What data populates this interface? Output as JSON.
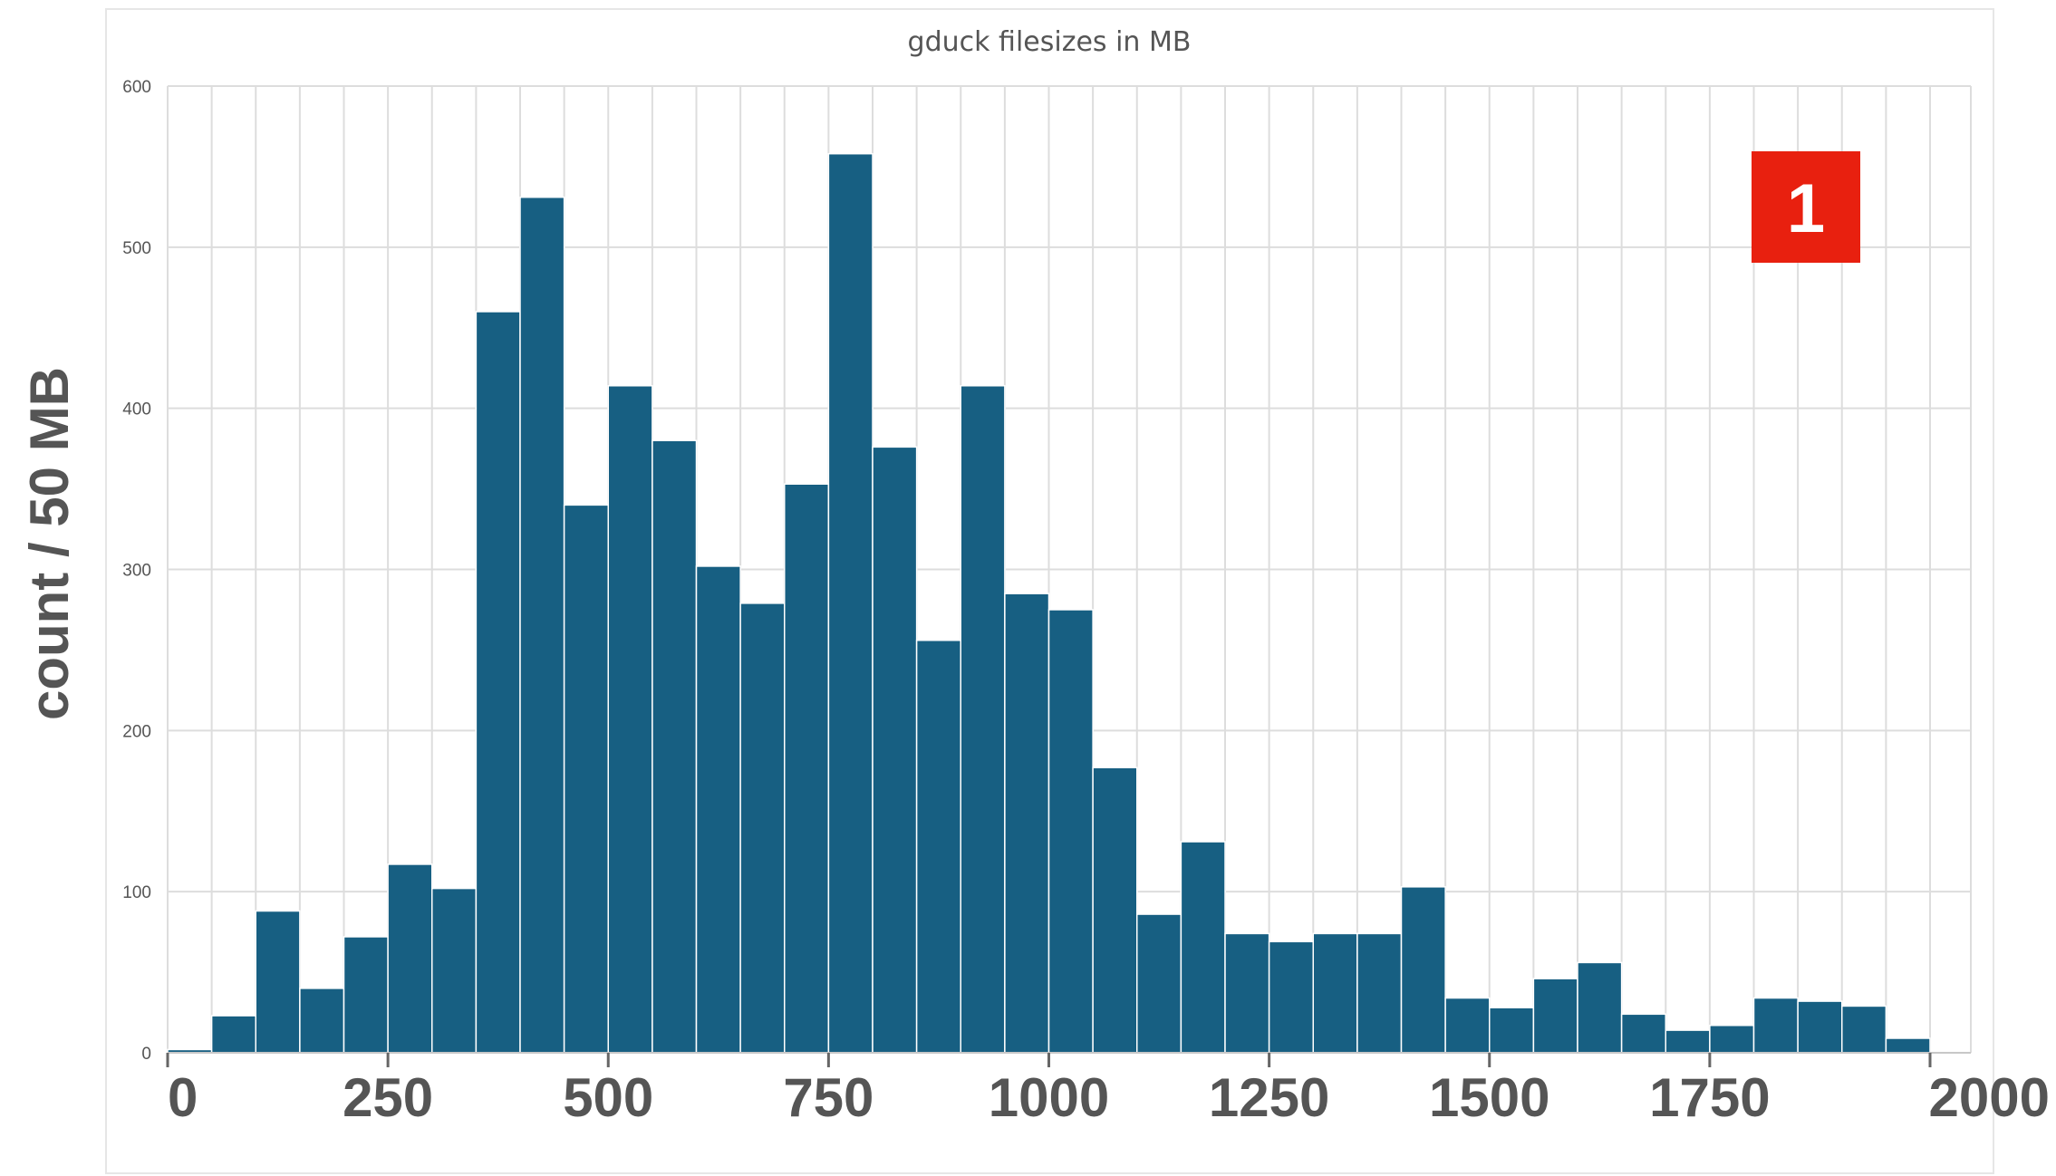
{
  "chart_data": {
    "type": "bar",
    "title": "gduck filesizes in MB",
    "xlabel": "",
    "ylabel": "count / 50 MB",
    "bin_width": 50,
    "xlim": [
      0,
      2000
    ],
    "ylim": [
      0,
      600
    ],
    "x_ticks": [
      0,
      250,
      500,
      750,
      1000,
      1250,
      1500,
      1750,
      2000
    ],
    "y_ticks": [
      0,
      100,
      200,
      300,
      400,
      500,
      600
    ],
    "grid": true,
    "bins": [
      {
        "x0": 0,
        "x1": 50,
        "count": 2
      },
      {
        "x0": 50,
        "x1": 100,
        "count": 23
      },
      {
        "x0": 100,
        "x1": 150,
        "count": 88
      },
      {
        "x0": 150,
        "x1": 200,
        "count": 40
      },
      {
        "x0": 200,
        "x1": 250,
        "count": 72
      },
      {
        "x0": 250,
        "x1": 300,
        "count": 117
      },
      {
        "x0": 300,
        "x1": 350,
        "count": 102
      },
      {
        "x0": 350,
        "x1": 400,
        "count": 460
      },
      {
        "x0": 400,
        "x1": 450,
        "count": 531
      },
      {
        "x0": 450,
        "x1": 500,
        "count": 340
      },
      {
        "x0": 500,
        "x1": 550,
        "count": 414
      },
      {
        "x0": 550,
        "x1": 600,
        "count": 380
      },
      {
        "x0": 600,
        "x1": 650,
        "count": 302
      },
      {
        "x0": 650,
        "x1": 700,
        "count": 279
      },
      {
        "x0": 700,
        "x1": 750,
        "count": 353
      },
      {
        "x0": 750,
        "x1": 800,
        "count": 558
      },
      {
        "x0": 800,
        "x1": 850,
        "count": 376
      },
      {
        "x0": 850,
        "x1": 900,
        "count": 256
      },
      {
        "x0": 900,
        "x1": 950,
        "count": 414
      },
      {
        "x0": 950,
        "x1": 1000,
        "count": 285
      },
      {
        "x0": 1000,
        "x1": 1050,
        "count": 275
      },
      {
        "x0": 1050,
        "x1": 1100,
        "count": 177
      },
      {
        "x0": 1100,
        "x1": 1150,
        "count": 86
      },
      {
        "x0": 1150,
        "x1": 1200,
        "count": 131
      },
      {
        "x0": 1200,
        "x1": 1250,
        "count": 74
      },
      {
        "x0": 1250,
        "x1": 1300,
        "count": 69
      },
      {
        "x0": 1300,
        "x1": 1350,
        "count": 74
      },
      {
        "x0": 1350,
        "x1": 1400,
        "count": 74
      },
      {
        "x0": 1400,
        "x1": 1450,
        "count": 103
      },
      {
        "x0": 1450,
        "x1": 1500,
        "count": 34
      },
      {
        "x0": 1500,
        "x1": 1550,
        "count": 28
      },
      {
        "x0": 1550,
        "x1": 1600,
        "count": 46
      },
      {
        "x0": 1600,
        "x1": 1650,
        "count": 56
      },
      {
        "x0": 1650,
        "x1": 1700,
        "count": 24
      },
      {
        "x0": 1700,
        "x1": 1750,
        "count": 14
      },
      {
        "x0": 1750,
        "x1": 1800,
        "count": 17
      },
      {
        "x0": 1800,
        "x1": 1850,
        "count": 34
      },
      {
        "x0": 1850,
        "x1": 1900,
        "count": 32
      },
      {
        "x0": 1900,
        "x1": 1950,
        "count": 29
      },
      {
        "x0": 1950,
        "x1": 2000,
        "count": 9
      }
    ],
    "annotations": [
      {
        "text": "1",
        "color": "#e8200f",
        "placement": "top-right"
      }
    ]
  }
}
